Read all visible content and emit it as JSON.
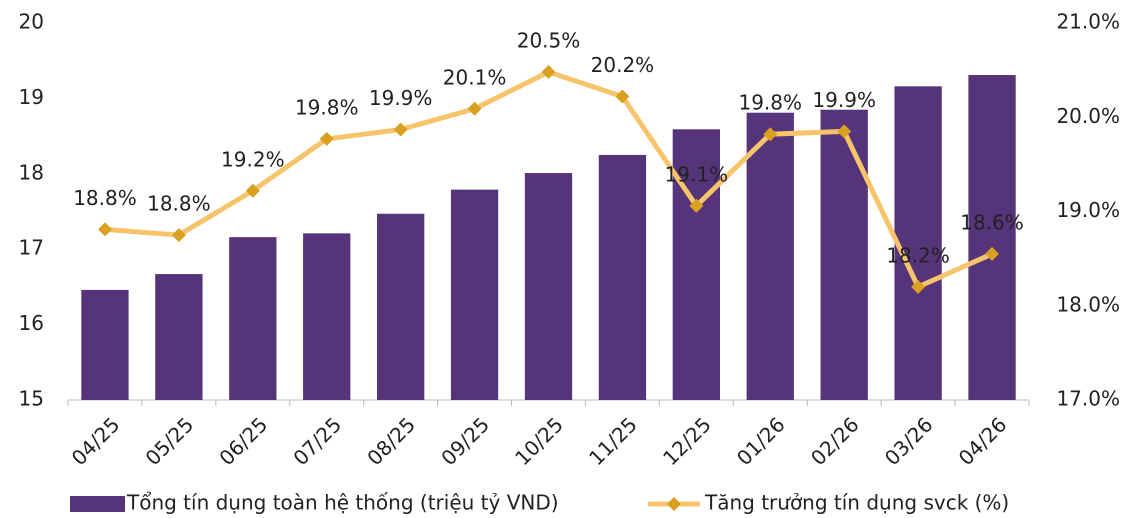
{
  "chart_data": {
    "type": "combo",
    "categories": [
      "04/25",
      "05/25",
      "06/25",
      "07/25",
      "08/25",
      "09/25",
      "10/25",
      "11/25",
      "12/25",
      "01/26",
      "02/26",
      "03/26",
      "04/26"
    ],
    "series": [
      {
        "name": "Tổng tín dụng toàn hệ thống (triệu tỷ VND)",
        "type": "bar",
        "axis": "y",
        "color": "#553479",
        "values": [
          16.46,
          16.67,
          17.16,
          17.21,
          17.47,
          17.79,
          18.01,
          18.25,
          18.59,
          18.81,
          18.85,
          19.16,
          19.31
        ]
      },
      {
        "name": "Tăng trưởng tín dụng svck (%)",
        "type": "line",
        "axis": "y2",
        "color": "#F7C46C",
        "marker_color": "#D9A021",
        "values": [
          18.81,
          18.75,
          19.22,
          19.77,
          19.87,
          20.09,
          20.48,
          20.22,
          19.06,
          19.82,
          19.85,
          18.2,
          18.55
        ],
        "value_labels": [
          "18.8%",
          "18.8%",
          "19.2%",
          "19.8%",
          "19.9%",
          "20.1%",
          "20.5%",
          "20.2%",
          "19.1%",
          "19.8%",
          "19.9%",
          "18.2%",
          "18.6%"
        ]
      }
    ],
    "ylim": [
      15,
      20
    ],
    "yticks": [
      15,
      16,
      17,
      18,
      19,
      20
    ],
    "y2lim": [
      17,
      21
    ],
    "y2ticks": [
      {
        "value": 17,
        "label": "17.0%"
      },
      {
        "value": 18,
        "label": "18.0%"
      },
      {
        "value": 19,
        "label": "19.0%"
      },
      {
        "value": 20,
        "label": "20.0%"
      },
      {
        "value": 21,
        "label": "21.0%"
      }
    ],
    "legend": "bottom"
  }
}
